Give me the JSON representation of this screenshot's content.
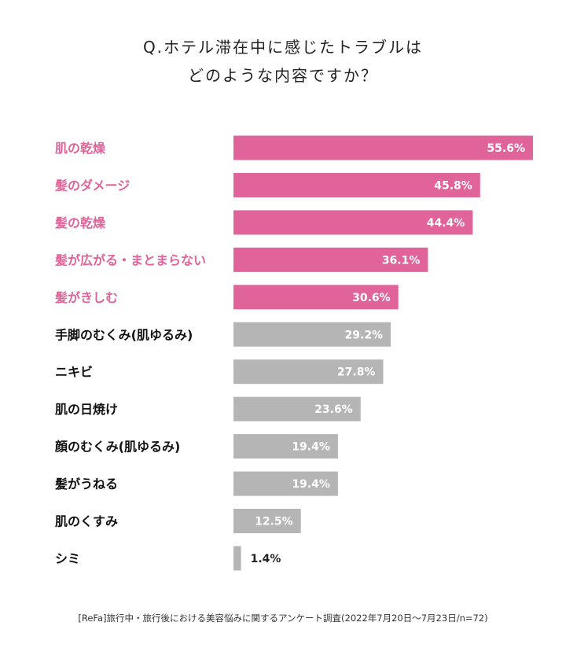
{
  "title": {
    "line1": "Q.ホテル滞在中に感じたトラブルは",
    "line2": "どのような内容ですか？"
  },
  "chart_data": {
    "type": "bar",
    "orientation": "horizontal",
    "categories": [
      "肌の乾燥",
      "髪のダメージ",
      "髪の乾燥",
      "髪が広がる・まとまらない",
      "髪がきしむ",
      "手脚のむくみ(肌ゆるみ)",
      "ニキビ",
      "肌の日焼け",
      "顔のむくみ(肌ゆるみ)",
      "髪がうねる",
      "肌のくすみ",
      "シミ"
    ],
    "values": [
      55.6,
      45.8,
      44.4,
      36.1,
      30.6,
      29.2,
      27.8,
      23.6,
      19.4,
      19.4,
      12.5,
      1.4
    ],
    "value_labels": [
      "55.6%",
      "45.8%",
      "44.4%",
      "36.1%",
      "30.6%",
      "29.2%",
      "27.8%",
      "23.6%",
      "19.4%",
      "19.4%",
      "12.5%",
      "1.4%"
    ],
    "highlighted_count": 5,
    "xlim": [
      0,
      55.6
    ],
    "grid": false,
    "legend": "none"
  },
  "colors": {
    "highlight": "#e06399",
    "default_bar": "#b5b5b5",
    "default_label": "#111111",
    "bar_text": "#ffffff",
    "small_value_text": "#222222"
  },
  "footnote": "[ReFa]旅行中・旅行後における美容悩みに関するアンケート調査(2022年7月20日～7月23日/n=72)"
}
